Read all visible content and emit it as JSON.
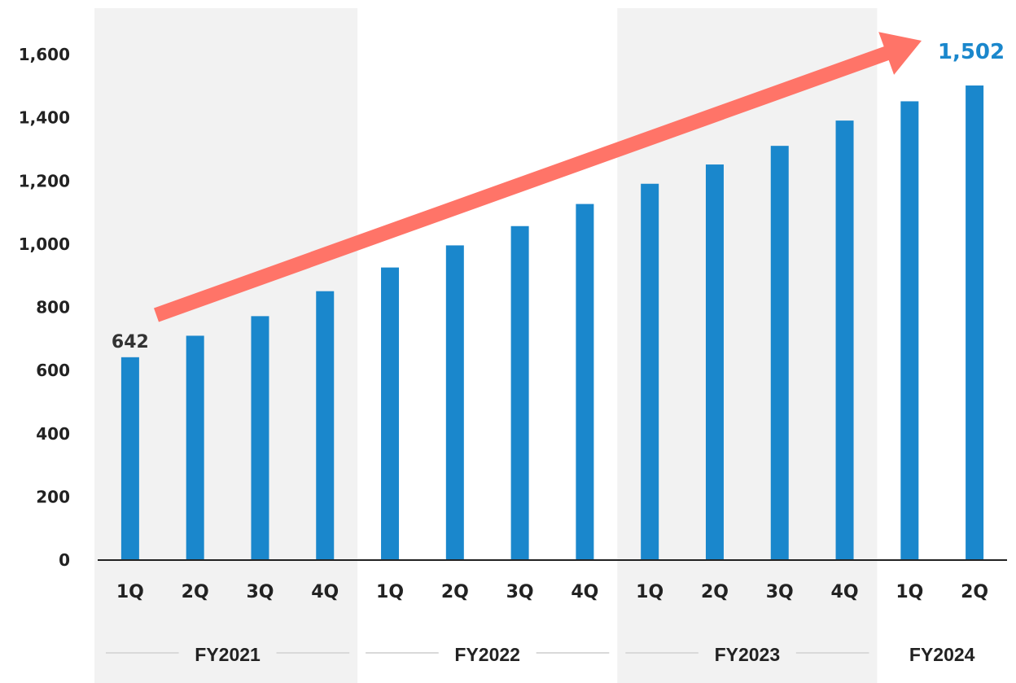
{
  "chart_data": {
    "type": "bar",
    "categories": [
      "1Q",
      "2Q",
      "3Q",
      "4Q",
      "1Q",
      "2Q",
      "3Q",
      "4Q",
      "1Q",
      "2Q",
      "3Q",
      "4Q",
      "1Q",
      "2Q"
    ],
    "groups": [
      {
        "label": "FY2021",
        "count": 4
      },
      {
        "label": "FY2022",
        "count": 4
      },
      {
        "label": "FY2023",
        "count": 4
      },
      {
        "label": "FY2024",
        "count": 2
      }
    ],
    "values": [
      642,
      710,
      772,
      851,
      926,
      996,
      1057,
      1127,
      1191,
      1252,
      1311,
      1391,
      1452,
      1502
    ],
    "ylim": [
      0,
      1700
    ],
    "yticks": [
      0,
      200,
      400,
      600,
      800,
      1000,
      1200,
      1400,
      1600
    ],
    "ytick_labels": [
      "0",
      "200",
      "400",
      "600",
      "800",
      "1,000",
      "1,200",
      "1,400",
      "1,600"
    ],
    "annotations": {
      "first_label": "642",
      "last_label": "1,502",
      "trend_arrow": true
    },
    "title": "",
    "xlabel": "",
    "ylabel": "",
    "grid": false,
    "legend": "none"
  },
  "colors": {
    "bar": "#1a87cc",
    "band": "#f2f2f2",
    "arrow": "#ff7468",
    "last_label": "#1a87cc",
    "highlight_group": "#ff7468",
    "axis": "#222222",
    "group_line": "#d9d9d9"
  }
}
